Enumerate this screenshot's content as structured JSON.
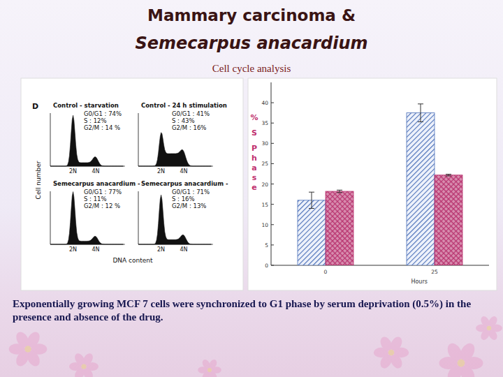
{
  "slide": {
    "title": "Mammary carcinoma &",
    "title_italic": "Semecarpus anacardium",
    "subtitle": "Cell cycle analysis",
    "caption": "Exponentially growing MCF 7 cells were synchronized to G1 phase by serum deprivation (0.5%) in the presence and absence of the drug."
  },
  "flow_figure": {
    "panel_label": "D",
    "y_label": "Cell number",
    "x_label": "DNA content",
    "peak_labels": [
      "2N",
      "4N"
    ],
    "panels": [
      {
        "title": "Control - starvation",
        "stats": [
          {
            "label": "G0/G1 : ",
            "value": 74,
            "value_label": "74%"
          },
          {
            "label": "S : ",
            "value": 12,
            "value_label": "12%"
          },
          {
            "label": "G2/M : ",
            "value": 14,
            "value_label": "14 %"
          }
        ]
      },
      {
        "title": "Control - 24 h stimulation",
        "stats": [
          {
            "label": "G0/G1 : ",
            "value": 41,
            "value_label": "41%"
          },
          {
            "label": "S : ",
            "value": 43,
            "value_label": "43%"
          },
          {
            "label": "G2/M : ",
            "value": 16,
            "value_label": "16%"
          }
        ]
      },
      {
        "title": "Semecarpus anacardium -",
        "stats": [
          {
            "label": "G0/G1 : ",
            "value": 77,
            "value_label": "77%"
          },
          {
            "label": "S : ",
            "value": 11,
            "value_label": "11%"
          },
          {
            "label": "G2/M : ",
            "value": 12,
            "value_label": "12 %"
          }
        ]
      },
      {
        "title": "Semecarpus anacardium -",
        "stats": [
          {
            "label": "G0/G1 : ",
            "value": 71,
            "value_label": "71%"
          },
          {
            "label": "S : ",
            "value": 16,
            "value_label": "16%"
          },
          {
            "label": "G2/M : ",
            "value": 13,
            "value_label": "13%"
          }
        ]
      }
    ]
  },
  "chart_data": {
    "type": "bar",
    "categories": [
      "0",
      "25"
    ],
    "x_label": "Hours",
    "y_label": "% S Phase",
    "series": [
      {
        "color": "#4a6fb8",
        "values": [
          16,
          37.5
        ],
        "errors": [
          2,
          2.2
        ]
      },
      {
        "color": "#b8336f",
        "values": [
          18.2,
          22.2
        ],
        "errors": [
          0.3,
          0.2
        ]
      }
    ],
    "ylim": [
      0,
      45
    ],
    "yticks": [
      0,
      5,
      10,
      15,
      20,
      25,
      30,
      35,
      40
    ]
  }
}
